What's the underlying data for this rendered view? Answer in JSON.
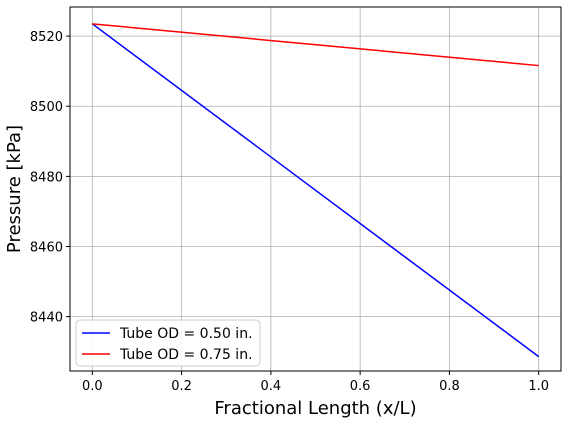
{
  "chart_data": {
    "type": "line",
    "xlabel": "Fractional Length (x/L)",
    "ylabel": "Pressure [kPa]",
    "xlim": [
      -0.05,
      1.05
    ],
    "ylim": [
      8424.5,
      8528.3
    ],
    "xticks": [
      0.0,
      0.2,
      0.4,
      0.6,
      0.8,
      1.0
    ],
    "xtick_labels": [
      "0.0",
      "0.2",
      "0.4",
      "0.6",
      "0.8",
      "1.0"
    ],
    "yticks": [
      8440,
      8460,
      8480,
      8500,
      8520
    ],
    "ytick_labels": [
      "8440",
      "8460",
      "8480",
      "8500",
      "8520"
    ],
    "grid": true,
    "legend_position": "lower-left",
    "series": [
      {
        "name": "Tube OD = 0.50 in.",
        "color": "#0000ff",
        "x": [
          0.0,
          1.0
        ],
        "y": [
          8523.5,
          8428.6
        ]
      },
      {
        "name": "Tube OD = 0.75 in.",
        "color": "#ff0000",
        "x": [
          0.0,
          1.0
        ],
        "y": [
          8523.5,
          8511.6
        ]
      }
    ]
  }
}
